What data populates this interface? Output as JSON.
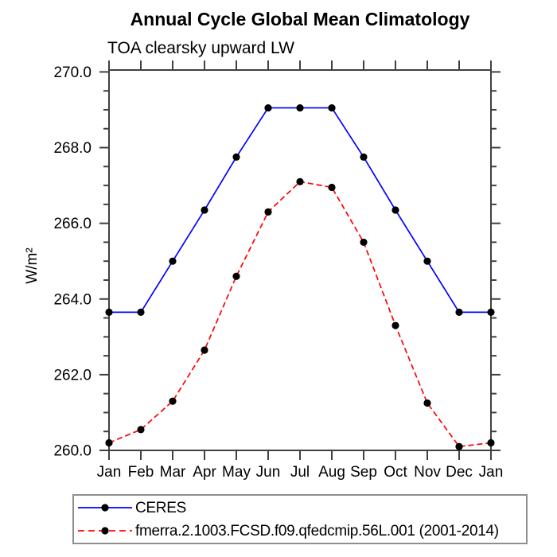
{
  "page": {
    "background": "#ffffff"
  },
  "chart_data": {
    "type": "line",
    "title": "Annual Cycle Global Mean Climatology",
    "subtitle": "TOA clearsky upward LW",
    "ylabel": "W/m²",
    "xlabel": "",
    "x_categories": [
      "Jan",
      "Feb",
      "Mar",
      "Apr",
      "May",
      "Jun",
      "Jul",
      "Aug",
      "Sep",
      "Oct",
      "Nov",
      "Dec",
      "Jan"
    ],
    "ylim": [
      260.0,
      270.0
    ],
    "y_major_tick_step": 2.0,
    "y_minor_tick_step": 0.5,
    "y_tick_labels": [
      "260.0",
      "262.0",
      "264.0",
      "266.0",
      "268.0",
      "270.0"
    ],
    "grid": false,
    "axis_color": "#404040",
    "legend_position": "bottom-left-box",
    "series": [
      {
        "name": "CERES",
        "color": "#0000ff",
        "line_style": "solid",
        "marker": "filled-circle",
        "marker_color": "#000000",
        "values": [
          263.65,
          263.65,
          265.0,
          266.35,
          267.75,
          269.05,
          269.05,
          269.05,
          267.75,
          266.35,
          265.0,
          263.65,
          263.65
        ]
      },
      {
        "name": "fmerra.2.1003.FCSD.f09.qfedcmip.56L.001 (2001-2014)",
        "color": "#ff0000",
        "line_style": "dashed",
        "marker": "filled-circle",
        "marker_color": "#000000",
        "values": [
          260.2,
          260.55,
          261.3,
          262.65,
          264.6,
          266.3,
          267.1,
          266.95,
          265.5,
          263.3,
          261.25,
          260.1,
          260.2
        ]
      }
    ]
  }
}
